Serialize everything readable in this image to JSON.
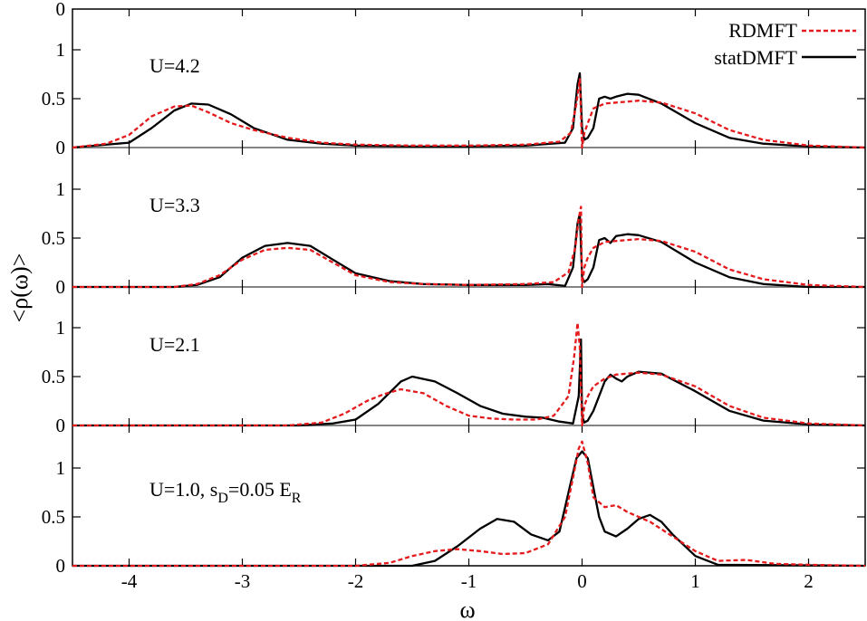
{
  "chart_data": {
    "type": "line",
    "xlabel": "ω",
    "ylabel": "<ρ(ω)>",
    "xlim": [
      -4.5,
      2.5
    ],
    "ylim": [
      0,
      1.45
    ],
    "xticks": [
      -4,
      -3,
      -2,
      -1,
      0,
      1,
      2
    ],
    "x_tick_labels": [
      "-4",
      "-3",
      "-2",
      "-1",
      "0",
      "1",
      "2"
    ],
    "y_tick_labels": [
      "0",
      "0.5",
      "1"
    ],
    "top_tick_label": "0",
    "legend": {
      "placement": "top-right",
      "entries": [
        {
          "name": "RDMFT",
          "color": "#e41a1c",
          "style": "dashed"
        },
        {
          "name": "statDMFT",
          "color": "#000000",
          "style": "solid"
        }
      ]
    },
    "panels": [
      {
        "label": "U=4.2",
        "series": [
          {
            "name": "statDMFT",
            "x": [
              -4.5,
              -4.0,
              -3.8,
              -3.6,
              -3.45,
              -3.3,
              -3.1,
              -2.9,
              -2.6,
              -2.3,
              -2.0,
              -1.5,
              -1.0,
              -0.5,
              -0.15,
              -0.08,
              -0.04,
              -0.02,
              0.0,
              0.02,
              0.05,
              0.1,
              0.15,
              0.2,
              0.25,
              0.3,
              0.4,
              0.5,
              0.7,
              1.0,
              1.3,
              1.6,
              2.0,
              2.5
            ],
            "y": [
              0.0,
              0.05,
              0.2,
              0.38,
              0.45,
              0.44,
              0.34,
              0.2,
              0.08,
              0.04,
              0.02,
              0.01,
              0.01,
              0.02,
              0.05,
              0.2,
              0.65,
              0.76,
              0.2,
              0.08,
              0.1,
              0.2,
              0.5,
              0.52,
              0.5,
              0.52,
              0.55,
              0.54,
              0.45,
              0.25,
              0.1,
              0.04,
              0.01,
              0.0
            ]
          },
          {
            "name": "RDMFT",
            "x": [
              -4.5,
              -4.2,
              -4.0,
              -3.8,
              -3.6,
              -3.45,
              -3.3,
              -3.1,
              -2.9,
              -2.6,
              -2.3,
              -2.0,
              -1.5,
              -1.0,
              -0.5,
              -0.2,
              -0.1,
              -0.05,
              -0.02,
              0.0,
              0.02,
              0.05,
              0.1,
              0.2,
              0.3,
              0.5,
              0.7,
              1.0,
              1.3,
              1.6,
              2.0,
              2.5
            ],
            "y": [
              0.0,
              0.04,
              0.13,
              0.32,
              0.42,
              0.43,
              0.36,
              0.25,
              0.18,
              0.1,
              0.05,
              0.03,
              0.02,
              0.02,
              0.03,
              0.06,
              0.15,
              0.45,
              0.7,
              0.0,
              0.15,
              0.25,
              0.4,
              0.45,
              0.46,
              0.48,
              0.46,
              0.35,
              0.18,
              0.08,
              0.02,
              0.0
            ]
          }
        ]
      },
      {
        "label": "U=3.3",
        "series": [
          {
            "name": "statDMFT",
            "x": [
              -4.5,
              -3.6,
              -3.4,
              -3.2,
              -3.0,
              -2.8,
              -2.6,
              -2.4,
              -2.2,
              -2.0,
              -1.7,
              -1.4,
              -1.0,
              -0.5,
              -0.3,
              -0.15,
              -0.08,
              -0.04,
              -0.02,
              0.0,
              0.02,
              0.05,
              0.1,
              0.15,
              0.2,
              0.25,
              0.3,
              0.4,
              0.5,
              0.7,
              1.0,
              1.3,
              1.6,
              2.0,
              2.5
            ],
            "y": [
              0.0,
              0.0,
              0.02,
              0.1,
              0.3,
              0.42,
              0.45,
              0.42,
              0.28,
              0.14,
              0.06,
              0.03,
              0.02,
              0.02,
              0.03,
              0.01,
              0.2,
              0.65,
              0.75,
              0.1,
              0.05,
              0.08,
              0.2,
              0.48,
              0.5,
              0.45,
              0.52,
              0.54,
              0.53,
              0.46,
              0.25,
              0.1,
              0.03,
              0.0,
              0.0
            ]
          },
          {
            "name": "RDMFT",
            "x": [
              -4.5,
              -3.6,
              -3.4,
              -3.2,
              -3.0,
              -2.8,
              -2.6,
              -2.4,
              -2.2,
              -2.0,
              -1.7,
              -1.4,
              -1.0,
              -0.5,
              -0.25,
              -0.12,
              -0.06,
              -0.03,
              -0.01,
              0.0,
              0.02,
              0.05,
              0.1,
              0.2,
              0.3,
              0.5,
              0.7,
              1.0,
              1.3,
              1.6,
              2.0,
              2.5
            ],
            "y": [
              0.0,
              0.0,
              0.03,
              0.12,
              0.28,
              0.38,
              0.4,
              0.38,
              0.25,
              0.12,
              0.05,
              0.03,
              0.02,
              0.03,
              0.05,
              0.15,
              0.4,
              0.7,
              0.82,
              0.0,
              0.2,
              0.3,
              0.4,
              0.46,
              0.47,
              0.49,
              0.47,
              0.36,
              0.18,
              0.08,
              0.02,
              0.0
            ]
          }
        ]
      },
      {
        "label": "U=2.1",
        "series": [
          {
            "name": "statDMFT",
            "x": [
              -4.5,
              -2.5,
              -2.2,
              -2.0,
              -1.8,
              -1.6,
              -1.5,
              -1.3,
              -1.1,
              -0.9,
              -0.7,
              -0.5,
              -0.35,
              -0.2,
              -0.08,
              -0.03,
              -0.01,
              0.0,
              0.02,
              0.05,
              0.1,
              0.15,
              0.2,
              0.25,
              0.3,
              0.35,
              0.4,
              0.5,
              0.7,
              1.0,
              1.3,
              1.6,
              2.0,
              2.5
            ],
            "y": [
              0.0,
              0.0,
              0.02,
              0.06,
              0.22,
              0.45,
              0.5,
              0.45,
              0.33,
              0.2,
              0.12,
              0.09,
              0.08,
              0.04,
              0.02,
              0.3,
              0.88,
              0.1,
              0.03,
              0.05,
              0.15,
              0.3,
              0.45,
              0.52,
              0.48,
              0.45,
              0.5,
              0.55,
              0.53,
              0.35,
              0.15,
              0.05,
              0.01,
              0.0
            ]
          },
          {
            "name": "RDMFT",
            "x": [
              -4.5,
              -2.6,
              -2.3,
              -2.1,
              -1.9,
              -1.75,
              -1.6,
              -1.4,
              -1.2,
              -1.0,
              -0.8,
              -0.6,
              -0.4,
              -0.25,
              -0.12,
              -0.07,
              -0.04,
              -0.02,
              0.0,
              0.02,
              0.05,
              0.1,
              0.2,
              0.3,
              0.5,
              0.7,
              1.0,
              1.3,
              1.6,
              2.0,
              2.5
            ],
            "y": [
              0.0,
              0.0,
              0.03,
              0.12,
              0.25,
              0.32,
              0.37,
              0.33,
              0.2,
              0.1,
              0.07,
              0.06,
              0.06,
              0.1,
              0.3,
              0.7,
              1.05,
              0.8,
              0.0,
              0.2,
              0.3,
              0.4,
              0.48,
              0.52,
              0.54,
              0.52,
              0.4,
              0.2,
              0.08,
              0.02,
              0.0
            ]
          }
        ]
      },
      {
        "label": "U=1.0, s",
        "label_sub": "D",
        "label_mid": "=0.05 E",
        "label_sub2": "R",
        "series": [
          {
            "name": "statDMFT",
            "x": [
              -4.5,
              -1.5,
              -1.3,
              -1.1,
              -0.9,
              -0.75,
              -0.6,
              -0.45,
              -0.3,
              -0.2,
              -0.1,
              -0.05,
              0.0,
              0.05,
              0.1,
              0.15,
              0.2,
              0.3,
              0.4,
              0.5,
              0.6,
              0.7,
              0.8,
              1.0,
              1.2,
              2.5
            ],
            "y": [
              0.0,
              0.0,
              0.05,
              0.2,
              0.38,
              0.48,
              0.45,
              0.32,
              0.26,
              0.35,
              0.85,
              1.1,
              1.17,
              1.1,
              0.8,
              0.5,
              0.35,
              0.3,
              0.38,
              0.48,
              0.52,
              0.45,
              0.32,
              0.1,
              0.01,
              0.0
            ]
          },
          {
            "name": "RDMFT",
            "x": [
              -4.5,
              -2.0,
              -1.7,
              -1.5,
              -1.3,
              -1.1,
              -0.9,
              -0.7,
              -0.5,
              -0.3,
              -0.15,
              -0.08,
              -0.03,
              0.0,
              0.05,
              0.1,
              0.2,
              0.3,
              0.4,
              0.5,
              0.6,
              0.8,
              1.0,
              1.2,
              1.45,
              1.7,
              2.0,
              2.5
            ],
            "y": [
              0.0,
              0.0,
              0.03,
              0.1,
              0.15,
              0.17,
              0.15,
              0.12,
              0.13,
              0.22,
              0.5,
              0.9,
              1.2,
              1.27,
              1.05,
              0.7,
              0.6,
              0.62,
              0.55,
              0.5,
              0.45,
              0.3,
              0.15,
              0.05,
              0.06,
              0.02,
              0.01,
              0.0
            ]
          }
        ]
      }
    ]
  }
}
